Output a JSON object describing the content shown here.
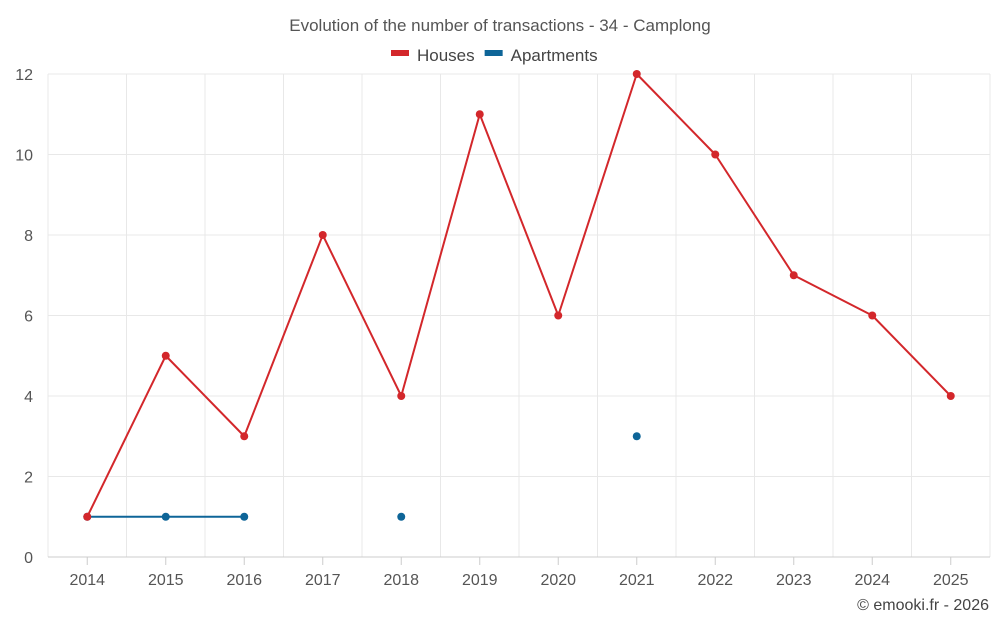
{
  "chart_data": {
    "type": "line",
    "title": "Evolution of the number of transactions - 34 - Camplong",
    "xlabel": "",
    "ylabel": "",
    "categories": [
      "2014",
      "2015",
      "2016",
      "2017",
      "2018",
      "2019",
      "2020",
      "2021",
      "2022",
      "2023",
      "2024",
      "2025"
    ],
    "ylim": [
      0,
      12
    ],
    "yticks": [
      0,
      2,
      4,
      6,
      8,
      10,
      12
    ],
    "grid": true,
    "legend": "top-center",
    "series": [
      {
        "name": "Houses",
        "color": "#d3272b",
        "values": [
          1,
          5,
          3,
          8,
          4,
          11,
          6,
          12,
          10,
          7,
          6,
          4
        ]
      },
      {
        "name": "Apartments",
        "color": "#0e6598",
        "values": [
          1,
          1,
          1,
          null,
          1,
          null,
          null,
          3,
          null,
          null,
          null,
          null
        ]
      }
    ]
  },
  "credit": "© emooki.fr - 2026"
}
